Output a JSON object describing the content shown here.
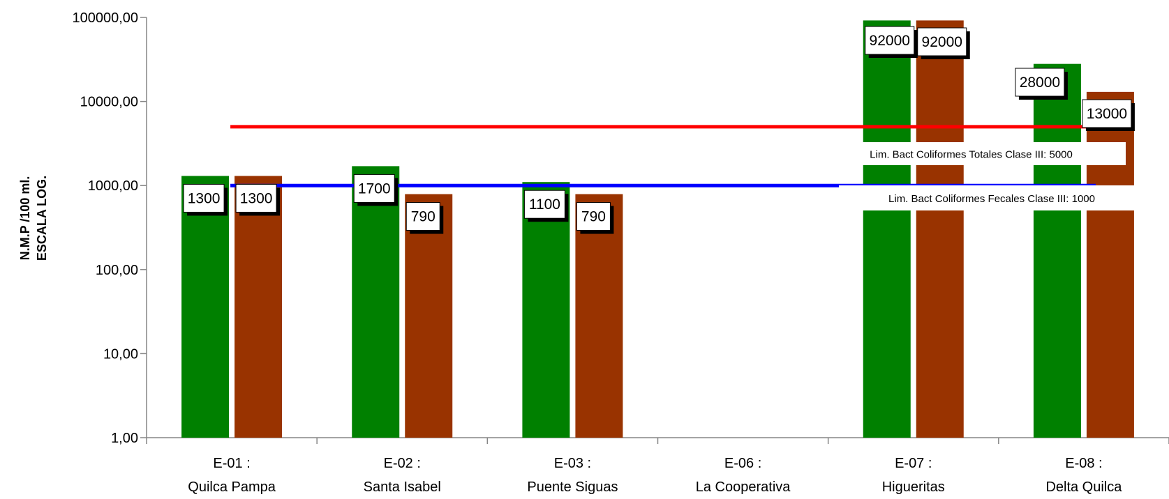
{
  "chart_data": {
    "type": "bar",
    "ylabel_lines": [
      "N.M.P /100 ml.",
      "ESCALA LOG."
    ],
    "yscale": "log",
    "ylim": [
      1,
      100000
    ],
    "ytick_values": [
      1,
      10,
      100,
      1000,
      10000,
      100000
    ],
    "ytick_labels": [
      "1,00",
      "10,00",
      "100,00",
      "1000,00",
      "10000,00",
      "100000,00"
    ],
    "categories": [
      {
        "code": "E-01 :",
        "name": "Quilca Pampa"
      },
      {
        "code": "E-02 :",
        "name": "Santa Isabel"
      },
      {
        "code": "E-03 :",
        "name": "Puente Siguas"
      },
      {
        "code": "E-06 :",
        "name": "La Cooperativa"
      },
      {
        "code": "E-07 :",
        "name": "Higueritas"
      },
      {
        "code": "E-08 :",
        "name": "Delta Quilca"
      }
    ],
    "series": [
      {
        "values": [
          1300,
          1700,
          1100,
          null,
          92000,
          28000
        ],
        "labels": [
          "1300",
          "1700",
          "1100",
          "",
          "92000",
          "28000"
        ],
        "color": "#008000"
      },
      {
        "values": [
          1300,
          790,
          790,
          null,
          92000,
          13000
        ],
        "labels": [
          "1300",
          "790",
          "790",
          "",
          "92000",
          "13000"
        ],
        "color": "#993300"
      }
    ],
    "reference_lines": [
      {
        "label": "Lim. Bact Coliformes Totales Clase III: 5000",
        "value": 5000,
        "color": "#ff0000"
      },
      {
        "label": "Lim. Bact Coliformes Fecales Clase III: 1000",
        "value": 1000,
        "color": "#0000ff"
      }
    ],
    "grid": false,
    "legend": "none"
  }
}
